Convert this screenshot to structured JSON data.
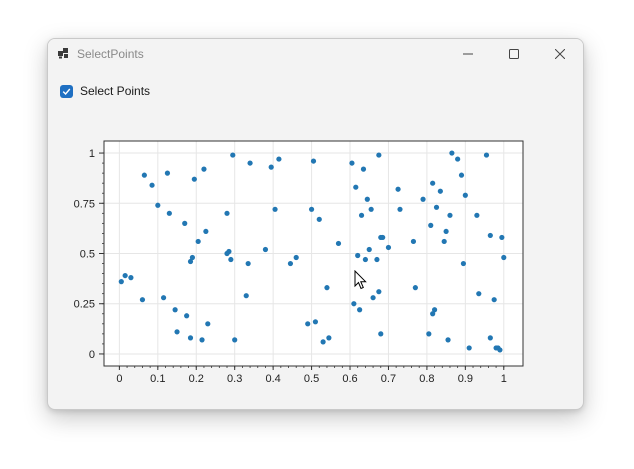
{
  "window": {
    "title": "SelectPoints",
    "icon": "app-icon"
  },
  "checkbox": {
    "label": "Select Points",
    "checked": true,
    "accent": "#1e6fc2"
  },
  "chart_data": {
    "type": "scatter",
    "title": "",
    "xlabel": "",
    "ylabel": "",
    "xlim": [
      -0.04,
      1.05
    ],
    "ylim": [
      -0.06,
      1.06
    ],
    "x_ticks": [
      0,
      0.1,
      0.2,
      0.3,
      0.4,
      0.5,
      0.6,
      0.7,
      0.8,
      0.9,
      1
    ],
    "x_tick_labels": [
      "0",
      "0.1",
      "0.2",
      "0.3",
      "0.4",
      "0.5",
      "0.6",
      "0.7",
      "0.8",
      "0.9",
      "1"
    ],
    "y_ticks": [
      0,
      0.25,
      0.5,
      0.75,
      1
    ],
    "y_tick_labels": [
      "0",
      "0.25",
      "0.5",
      "0.75",
      "1"
    ],
    "grid": true,
    "point_color": "#2277b3",
    "points": [
      [
        0.005,
        0.36
      ],
      [
        0.015,
        0.39
      ],
      [
        0.03,
        0.38
      ],
      [
        0.06,
        0.27
      ],
      [
        0.065,
        0.89
      ],
      [
        0.085,
        0.84
      ],
      [
        0.1,
        0.74
      ],
      [
        0.115,
        0.28
      ],
      [
        0.125,
        0.9
      ],
      [
        0.13,
        0.7
      ],
      [
        0.145,
        0.22
      ],
      [
        0.15,
        0.11
      ],
      [
        0.17,
        0.65
      ],
      [
        0.175,
        0.19
      ],
      [
        0.185,
        0.08
      ],
      [
        0.185,
        0.46
      ],
      [
        0.19,
        0.48
      ],
      [
        0.195,
        0.87
      ],
      [
        0.205,
        0.56
      ],
      [
        0.215,
        0.07
      ],
      [
        0.22,
        0.92
      ],
      [
        0.225,
        0.61
      ],
      [
        0.23,
        0.15
      ],
      [
        0.28,
        0.7
      ],
      [
        0.28,
        0.5
      ],
      [
        0.285,
        0.51
      ],
      [
        0.29,
        0.47
      ],
      [
        0.295,
        0.99
      ],
      [
        0.3,
        0.07
      ],
      [
        0.33,
        0.29
      ],
      [
        0.335,
        0.45
      ],
      [
        0.34,
        0.95
      ],
      [
        0.38,
        0.52
      ],
      [
        0.395,
        0.93
      ],
      [
        0.405,
        0.72
      ],
      [
        0.415,
        0.97
      ],
      [
        0.445,
        0.45
      ],
      [
        0.46,
        0.48
      ],
      [
        0.49,
        0.15
      ],
      [
        0.5,
        0.72
      ],
      [
        0.505,
        0.96
      ],
      [
        0.51,
        0.16
      ],
      [
        0.52,
        0.67
      ],
      [
        0.53,
        0.06
      ],
      [
        0.54,
        0.33
      ],
      [
        0.545,
        0.08
      ],
      [
        0.57,
        0.55
      ],
      [
        0.605,
        0.95
      ],
      [
        0.61,
        0.25
      ],
      [
        0.615,
        0.83
      ],
      [
        0.62,
        0.49
      ],
      [
        0.625,
        0.22
      ],
      [
        0.63,
        0.69
      ],
      [
        0.635,
        0.92
      ],
      [
        0.64,
        0.47
      ],
      [
        0.645,
        0.77
      ],
      [
        0.65,
        0.52
      ],
      [
        0.655,
        0.72
      ],
      [
        0.66,
        0.28
      ],
      [
        0.67,
        0.47
      ],
      [
        0.675,
        0.99
      ],
      [
        0.675,
        0.31
      ],
      [
        0.68,
        0.1
      ],
      [
        0.68,
        0.58
      ],
      [
        0.685,
        0.58
      ],
      [
        0.7,
        0.53
      ],
      [
        0.725,
        0.82
      ],
      [
        0.73,
        0.72
      ],
      [
        0.765,
        0.56
      ],
      [
        0.77,
        0.33
      ],
      [
        0.79,
        0.77
      ],
      [
        0.805,
        0.1
      ],
      [
        0.81,
        0.64
      ],
      [
        0.815,
        0.2
      ],
      [
        0.815,
        0.85
      ],
      [
        0.82,
        0.22
      ],
      [
        0.825,
        0.73
      ],
      [
        0.835,
        0.81
      ],
      [
        0.845,
        0.56
      ],
      [
        0.85,
        0.61
      ],
      [
        0.855,
        0.07
      ],
      [
        0.86,
        0.69
      ],
      [
        0.865,
        1.0
      ],
      [
        0.88,
        0.97
      ],
      [
        0.89,
        0.89
      ],
      [
        0.895,
        0.45
      ],
      [
        0.9,
        0.79
      ],
      [
        0.91,
        0.03
      ],
      [
        0.93,
        0.69
      ],
      [
        0.935,
        0.3
      ],
      [
        0.955,
        0.99
      ],
      [
        0.965,
        0.59
      ],
      [
        0.965,
        0.08
      ],
      [
        0.975,
        0.27
      ],
      [
        0.98,
        0.03
      ],
      [
        0.985,
        0.03
      ],
      [
        0.99,
        0.02
      ],
      [
        0.995,
        0.58
      ],
      [
        1.0,
        0.48
      ]
    ]
  }
}
